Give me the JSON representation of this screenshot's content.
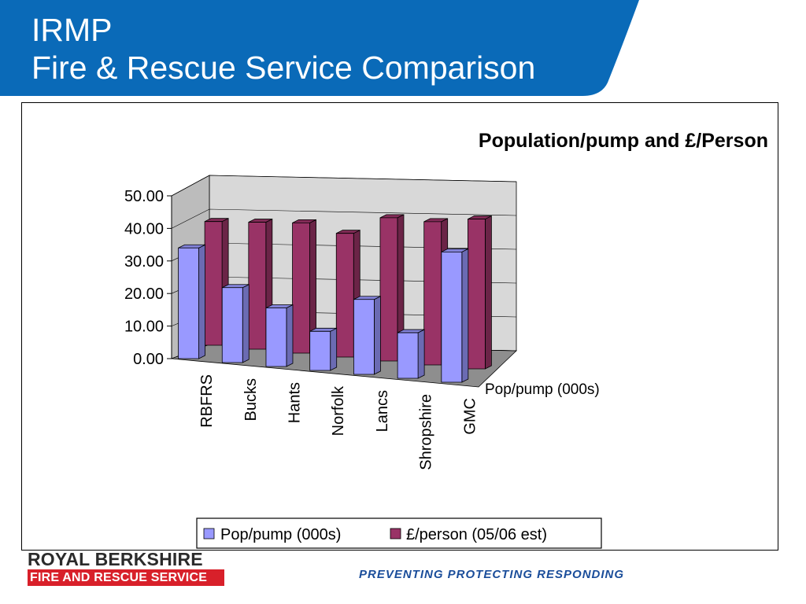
{
  "slide": {
    "title_line1": "IRMP",
    "title_line2": "Fire & Rescue Service Comparison"
  },
  "footer": {
    "logo_line1": "ROYAL BERKSHIRE",
    "logo_line2": "FIRE AND RESCUE SERVICE",
    "tagline": "PREVENTING PROTECTING RESPONDING"
  },
  "colors": {
    "header_blue": "#0a6ab8",
    "series_pop": "#9999ff",
    "series_pound": "#993366",
    "logo_red": "#d8202a",
    "tagline_blue": "#1a4d9a"
  },
  "chart_data": {
    "type": "bar",
    "title": "Population/pump and £/Person",
    "categories": [
      "RBFRS",
      "Bucks",
      "Hants",
      "Norfolk",
      "Lancs",
      "Shropshire",
      "GMC"
    ],
    "series": [
      {
        "name": "Pop/pump (000s)",
        "values": [
          34.0,
          23.0,
          18.0,
          12.0,
          23.0,
          14.0,
          40.0
        ]
      },
      {
        "name": "£/person (05/06 est)",
        "values": [
          38.0,
          39.0,
          40.0,
          38.0,
          44.0,
          44.0,
          46.0
        ]
      }
    ],
    "depth_axis_label": "Pop/pump (000s)",
    "yticks": [
      "0.00",
      "10.00",
      "20.00",
      "30.00",
      "40.00",
      "50.00"
    ],
    "ylim": [
      0,
      50
    ],
    "grid": true,
    "legend_position": "bottom"
  }
}
